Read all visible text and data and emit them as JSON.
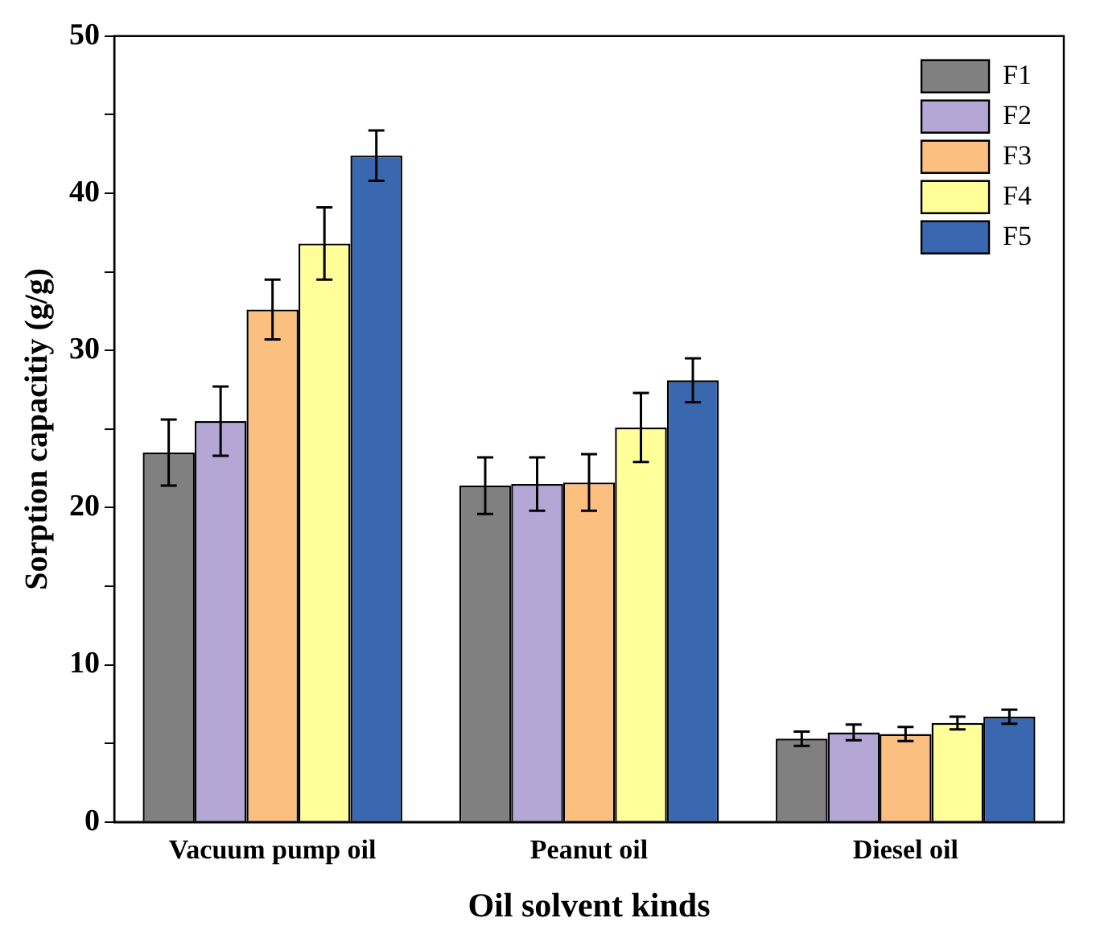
{
  "chart_data": {
    "type": "bar",
    "xlabel": "Oil solvent kinds",
    "ylabel": "Sorption capacitiy (g/g)",
    "categories": [
      "Vacuum pump oil",
      "Peanut oil",
      "Diesel oil"
    ],
    "series": [
      {
        "name": "F1",
        "color": "#808080",
        "values": [
          23.5,
          21.4,
          5.3
        ],
        "errors": [
          2.1,
          1.8,
          0.45
        ]
      },
      {
        "name": "F2",
        "color": "#b4a7d6",
        "values": [
          25.5,
          21.5,
          5.7
        ],
        "errors": [
          2.2,
          1.7,
          0.5
        ]
      },
      {
        "name": "F3",
        "color": "#fbc07f",
        "values": [
          32.6,
          21.6,
          5.6
        ],
        "errors": [
          1.9,
          1.8,
          0.45
        ]
      },
      {
        "name": "F4",
        "color": "#fffe99",
        "values": [
          36.8,
          25.1,
          6.3
        ],
        "errors": [
          2.3,
          2.2,
          0.4
        ]
      },
      {
        "name": "F5",
        "color": "#3a68b0",
        "values": [
          42.4,
          28.1,
          6.7
        ],
        "errors": [
          1.6,
          1.4,
          0.45
        ]
      }
    ],
    "ylim": [
      0,
      50
    ],
    "yticks": [
      0,
      {
        "value": 5,
        "label": null
      },
      10,
      {
        "value": 15,
        "label": null
      },
      20,
      {
        "value": 25,
        "label": null
      },
      30,
      {
        "value": 35,
        "label": null
      },
      40,
      {
        "value": 45,
        "label": null
      },
      50
    ],
    "grid": false,
    "legend": "top right"
  }
}
